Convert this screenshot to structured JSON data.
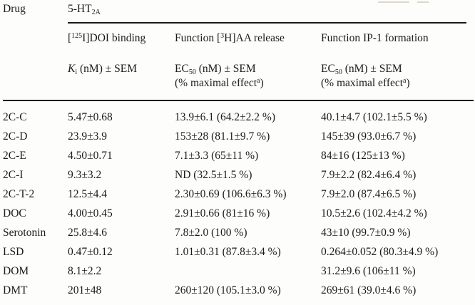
{
  "table": {
    "colors": {
      "background": "#fdfdfb",
      "text": "#1b1b1b",
      "rule": "#1b1b1b"
    },
    "header": {
      "drug_label": "Drug",
      "receptor": {
        "base": "5-HT",
        "sub": "2A"
      },
      "binding_col": {
        "bracket_open": "[",
        "isotope": "125",
        "rest": "I]DOI binding"
      },
      "aa_col": {
        "pre": "Function [",
        "isotope": "3",
        "rest": "H]AA release"
      },
      "ip1_col": "Function IP-1 formation",
      "ki_measure": {
        "symbol": "K",
        "symbol_sub": "i",
        "rest": " (nM) ± SEM"
      },
      "ec50_measure": {
        "symbol": "EC",
        "symbol_sub": "50",
        "rest": " (nM) ± SEM"
      },
      "maximal_effect": {
        "pre": "(% maximal effect",
        "sup": "a",
        "post": ")"
      }
    },
    "rows": [
      {
        "name": "2C-C",
        "ki": "5.47±0.68",
        "aa_release": "13.9±6.1 (64.2±2.2 %)",
        "ip1_formation": "40.1±4.7 (102.1±5.5 %)"
      },
      {
        "name": "2C-D",
        "ki": "23.9±3.9",
        "aa_release": "153±28 (81.1±9.7 %)",
        "ip1_formation": "145±39 (93.0±6.7 %)"
      },
      {
        "name": "2C-E",
        "ki": "4.50±0.71",
        "aa_release": "7.1±3.3 (65±11 %)",
        "ip1_formation": "84±16 (125±13 %)"
      },
      {
        "name": "2C-I",
        "ki": "9.3±3.2",
        "aa_release": "ND (32.5±1.5 %)",
        "ip1_formation": "7.9±2.2 (82.4±6.4 %)"
      },
      {
        "name": "2C-T-2",
        "ki": "12.5±4.4",
        "aa_release": "2.30±0.69 (106.6±6.3 %)",
        "ip1_formation": "7.9±2.0 (87.4±6.5 %)"
      },
      {
        "name": "DOC",
        "ki": "4.00±0.45",
        "aa_release": "2.91±0.66 (81±16 %)",
        "ip1_formation": "10.5±2.6 (102.4±4.2 %)"
      },
      {
        "name": "Serotonin",
        "ki": "25.8±4.6",
        "aa_release": "7.8±2.0 (100 %)",
        "ip1_formation": "43±10 (99.7±0.9 %)"
      },
      {
        "name": "LSD",
        "ki": "0.47±0.12",
        "aa_release": "1.01±0.31 (87.8±3.4 %)",
        "ip1_formation": "0.264±0.052 (80.3±4.9 %)"
      },
      {
        "name": "DOM",
        "ki": "8.1±2.2",
        "aa_release": "",
        "ip1_formation": "31.2±9.6 (106±11 %)"
      },
      {
        "name": "DMT",
        "ki": "201±48",
        "aa_release": "260±120 (105.1±3.0 %)",
        "ip1_formation": "269±61 (39.0±4.6 %)"
      }
    ]
  }
}
